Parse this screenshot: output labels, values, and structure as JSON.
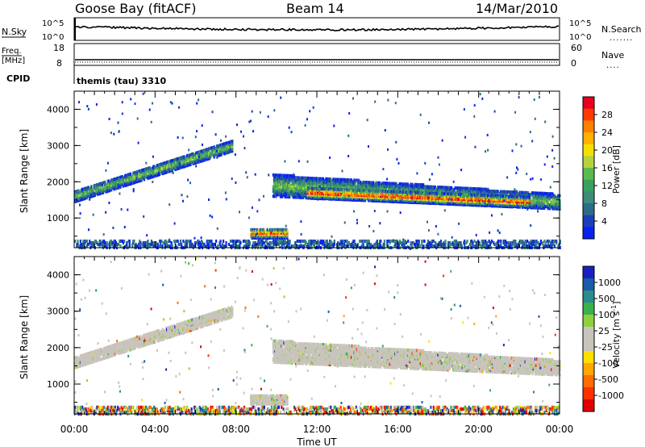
{
  "header": {
    "station": "Goose Bay (fitACF)",
    "beam": "Beam 14",
    "date": "14/Mar/2010"
  },
  "top_panels": {
    "nsky": {
      "label": "N.Sky",
      "tick_high": "10^5",
      "tick_low": "10^0",
      "right_tick_high": "10^5",
      "right_tick_low": "10^0",
      "right_label": "N.Search",
      "right_dots": "......."
    },
    "freq": {
      "label_line1": "Freq.",
      "label_line2": "[MHz]",
      "tick_high": "18",
      "tick_low": "8",
      "right_tick_high": "60",
      "right_tick_low": "0",
      "right_label": "Nave",
      "right_dots": "...."
    },
    "cpid": {
      "label": "CPID",
      "text": "themis (tau) 3310"
    }
  },
  "chart_data": [
    {
      "type": "heatmap",
      "name": "power",
      "ylabel": "Slant Range [km]",
      "yticks": [
        "1000",
        "2000",
        "3000",
        "4000"
      ],
      "ylim": [
        180,
        4500
      ],
      "xlim": [
        0,
        24
      ],
      "colorbar": {
        "label": "Power [dB]",
        "ticks": [
          "28",
          "24",
          "20",
          "16",
          "12",
          "8",
          "4"
        ],
        "colors": [
          "#e8001c",
          "#ff3a00",
          "#ff7f00",
          "#ffb000",
          "#f4e000",
          "#b6d23c",
          "#5aba50",
          "#39a060",
          "#3c8c78",
          "#2c6c88",
          "#1a40b8",
          "#0a22f0"
        ]
      },
      "bands": [
        {
          "x": [
            0.0,
            7.8
          ],
          "r0": [
            1450,
            2850
          ],
          "r1": [
            1750,
            3150
          ],
          "v": [
            4,
            8
          ]
        },
        {
          "x": [
            9.8,
            24.0
          ],
          "r0": [
            1600,
            1250
          ],
          "r1": [
            2200,
            1650
          ],
          "v": [
            8,
            20
          ]
        },
        {
          "x": [
            11.5,
            22.5
          ],
          "r0": [
            1550,
            1300
          ],
          "r1": [
            1850,
            1580
          ],
          "v": [
            14,
            28
          ]
        },
        {
          "x": [
            8.7,
            10.5
          ],
          "r0": [
            450,
            450
          ],
          "r1": [
            700,
            700
          ],
          "v": [
            12,
            28
          ]
        },
        {
          "x": [
            0.0,
            24.0
          ],
          "r0": [
            180,
            180
          ],
          "r1": [
            400,
            400
          ],
          "v": [
            4,
            12
          ]
        }
      ]
    },
    {
      "type": "heatmap",
      "name": "velocity",
      "ylabel": "Slant Range [km]",
      "xlabel": "Time UT",
      "xticks": [
        "00:00",
        "04:00",
        "08:00",
        "12:00",
        "16:00",
        "20:00",
        "00:00"
      ],
      "yticks": [
        "1000",
        "2000",
        "3000",
        "4000"
      ],
      "ylim": [
        180,
        4500
      ],
      "xlim": [
        0,
        24
      ],
      "colorbar": {
        "label": "Velocity [m s^-1]",
        "ticks": [
          "1000",
          "500",
          "100",
          "25",
          "-25",
          "-100",
          "-500",
          "-1000"
        ],
        "colors": [
          "#1a20c0",
          "#1a5aa8",
          "#2a8c8c",
          "#3cb04c",
          "#8cd23c",
          "#c8c4bc",
          "#c8c4bc",
          "#ffe000",
          "#ffa800",
          "#ff6c00",
          "#ff3000",
          "#e00000"
        ]
      },
      "bands": [
        {
          "x": [
            0.0,
            7.8
          ],
          "r0": [
            1450,
            2850
          ],
          "r1": [
            1750,
            3150
          ],
          "v": [
            -25,
            25
          ]
        },
        {
          "x": [
            9.8,
            24.0
          ],
          "r0": [
            1600,
            1250
          ],
          "r1": [
            2200,
            1650
          ],
          "v": [
            -25,
            25
          ]
        },
        {
          "x": [
            8.7,
            10.5
          ],
          "r0": [
            450,
            450
          ],
          "r1": [
            700,
            700
          ],
          "v": [
            -25,
            25
          ]
        },
        {
          "x": [
            0.0,
            24.0
          ],
          "r0": [
            180,
            180
          ],
          "r1": [
            400,
            400
          ],
          "v": [
            -100,
            100
          ]
        }
      ]
    }
  ]
}
